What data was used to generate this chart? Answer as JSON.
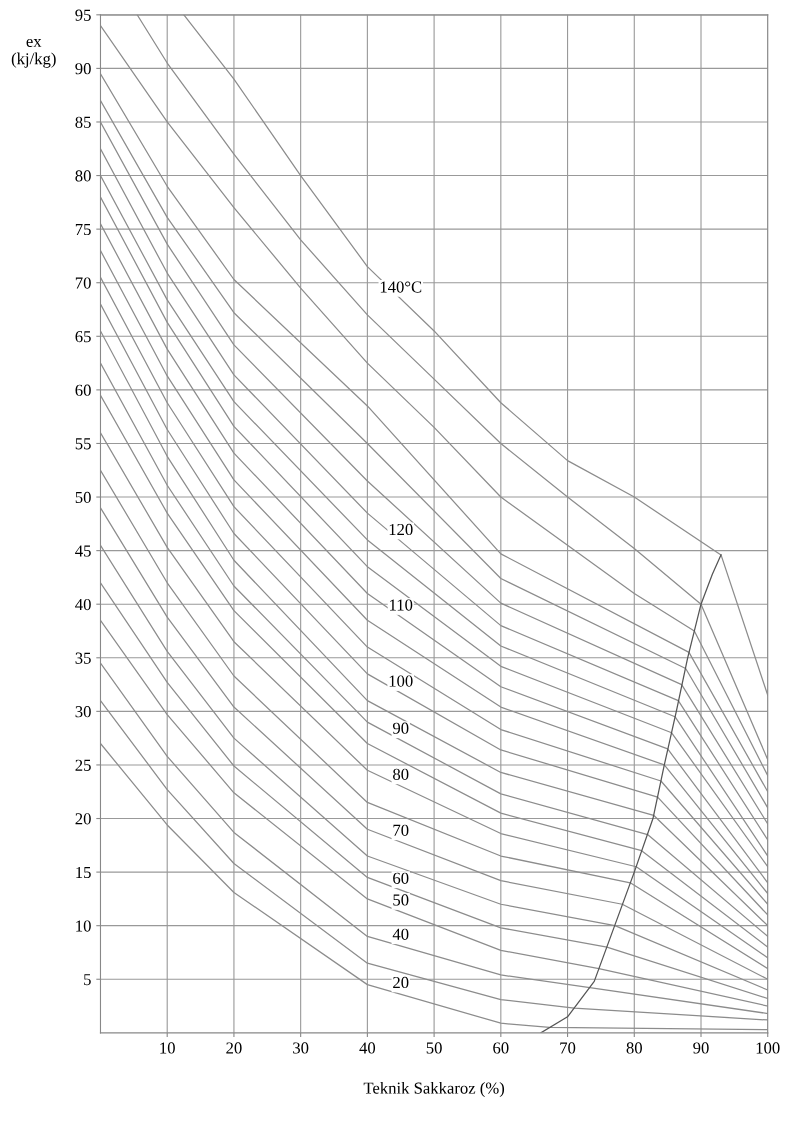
{
  "chart_data": {
    "type": "line",
    "xlabel": "Teknik Sakkaroz (%)",
    "ylabel": "ex\n(kj/kg)",
    "xlim": [
      0,
      100
    ],
    "xticks": [
      10,
      20,
      30,
      40,
      50,
      60,
      70,
      80,
      90,
      100
    ],
    "ylim": [
      0,
      95
    ],
    "yticks": [
      5,
      10,
      15,
      20,
      25,
      30,
      35,
      40,
      45,
      50,
      55,
      60,
      65,
      70,
      75,
      80,
      85,
      90,
      95
    ],
    "grid": true,
    "marker": "none",
    "line_style": "solid",
    "series": [
      {
        "name": "140°C",
        "color": "#8c8c8c",
        "x": [
          12.5,
          20,
          30,
          40,
          50,
          60,
          70,
          80,
          93,
          100
        ],
        "values": [
          95,
          89,
          80,
          71.5,
          65.5,
          58.8,
          53.4,
          50,
          44.6,
          31.5
        ]
      },
      {
        "color": "#8c8c8c",
        "x": [
          5.5,
          10,
          20,
          30,
          40,
          50,
          60,
          70,
          80,
          90,
          100
        ],
        "values": [
          95,
          90.5,
          82,
          74,
          67,
          61,
          55,
          50,
          45.2,
          40,
          25.5
        ]
      },
      {
        "color": "#8c8c8c",
        "x": [
          0,
          10,
          20,
          30,
          40,
          50,
          60,
          70,
          80,
          89,
          100
        ],
        "values": [
          94,
          85,
          77,
          69.5,
          62.5,
          56.5,
          50,
          45.5,
          41,
          37.5,
          24
        ]
      },
      {
        "color": "#8c8c8c",
        "x": [
          0,
          10,
          20,
          40,
          60,
          88.2,
          100
        ],
        "values": [
          89.5,
          79,
          70.3,
          58.5,
          44.7,
          35.5,
          22.5
        ]
      },
      {
        "color": "#8c8c8c",
        "x": [
          0,
          10,
          20,
          40,
          60,
          87.7,
          100
        ],
        "values": [
          87,
          76.1,
          67.2,
          55,
          42.4,
          34,
          21
        ]
      },
      {
        "color": "#8c8c8c",
        "x": [
          0,
          10,
          20,
          40,
          60,
          87.1,
          100
        ],
        "values": [
          85,
          73.6,
          64.2,
          51.5,
          40.1,
          32.5,
          19.5
        ]
      },
      {
        "name": "120",
        "color": "#8c8c8c",
        "x": [
          0,
          10,
          20,
          40,
          60,
          86.6,
          100
        ],
        "values": [
          82.5,
          70.9,
          61.4,
          48.5,
          38,
          31,
          18
        ]
      },
      {
        "color": "#8c8c8c",
        "x": [
          0,
          10,
          20,
          40,
          60,
          86.1,
          100
        ],
        "values": [
          80,
          68.4,
          58.9,
          46,
          36.1,
          29.5,
          16.5
        ]
      },
      {
        "color": "#8c8c8c",
        "x": [
          0,
          10,
          20,
          40,
          60,
          85.6,
          100
        ],
        "values": [
          78,
          66.3,
          56.6,
          43.5,
          34.2,
          28,
          15.5
        ]
      },
      {
        "name": "110",
        "color": "#8c8c8c",
        "x": [
          0,
          10,
          20,
          40,
          60,
          85,
          100
        ],
        "values": [
          75.5,
          63.8,
          54.1,
          41,
          32.3,
          26.5,
          14
        ]
      },
      {
        "color": "#8c8c8c",
        "x": [
          0,
          10,
          20,
          40,
          60,
          84.5,
          100
        ],
        "values": [
          73,
          61.3,
          51.6,
          38.5,
          30.4,
          25,
          13
        ]
      },
      {
        "color": "#8c8c8c",
        "x": [
          0,
          10,
          20,
          40,
          60,
          84,
          100
        ],
        "values": [
          70.5,
          58.8,
          49.1,
          36,
          28.3,
          23.5,
          12
        ]
      },
      {
        "name": "100",
        "color": "#8c8c8c",
        "x": [
          0,
          10,
          20,
          40,
          60,
          83.5,
          100
        ],
        "values": [
          68,
          56.3,
          46.6,
          33.5,
          26.4,
          22,
          11
        ]
      },
      {
        "color": "#8c8c8c",
        "x": [
          0,
          10,
          20,
          40,
          60,
          82.9,
          100
        ],
        "values": [
          65.5,
          53.8,
          44.1,
          31,
          24.3,
          20.3,
          10
        ]
      },
      {
        "name": "90",
        "color": "#8c8c8c",
        "x": [
          0,
          10,
          20,
          40,
          60,
          82,
          100
        ],
        "values": [
          62.5,
          51.1,
          41.7,
          29,
          22.3,
          18.5,
          9
        ]
      },
      {
        "color": "#8c8c8c",
        "x": [
          0,
          10,
          20,
          40,
          60,
          81.1,
          100
        ],
        "values": [
          59.5,
          48.5,
          39.4,
          27,
          20.5,
          17,
          8
        ]
      },
      {
        "name": "80",
        "color": "#8c8c8c",
        "x": [
          0,
          10,
          20,
          40,
          60,
          80.3,
          100
        ],
        "values": [
          56,
          45.3,
          36.5,
          24.5,
          18.6,
          15.5,
          7
        ]
      },
      {
        "color": "#8c8c8c",
        "x": [
          0,
          10,
          20,
          40,
          60,
          79.4,
          100
        ],
        "values": [
          52.5,
          42,
          33.3,
          21.5,
          16.5,
          14,
          6
        ]
      },
      {
        "name": "70",
        "color": "#8c8c8c",
        "x": [
          0,
          10,
          20,
          40,
          60,
          78.2,
          100
        ],
        "values": [
          49,
          38.8,
          30.4,
          19,
          14.2,
          12,
          5
        ]
      },
      {
        "color": "#8c8c8c",
        "x": [
          0,
          10,
          20,
          40,
          60,
          77.1,
          100
        ],
        "values": [
          45.5,
          35.6,
          27.5,
          16.5,
          12,
          10,
          4
        ]
      },
      {
        "name": "60",
        "color": "#8c8c8c",
        "x": [
          0,
          10,
          20,
          40,
          60,
          75.9,
          100
        ],
        "values": [
          42,
          32.7,
          24.9,
          14.5,
          9.8,
          8,
          3.2
        ]
      },
      {
        "name": "50",
        "color": "#8c8c8c",
        "x": [
          0,
          10,
          20,
          40,
          60,
          74.7,
          100
        ],
        "values": [
          38.5,
          29.7,
          22.4,
          12.5,
          7.7,
          6,
          2.5
        ]
      },
      {
        "name": "40",
        "color": "#8c8c8c",
        "x": [
          0,
          10,
          20,
          40,
          60,
          73.6,
          100
        ],
        "values": [
          34.5,
          25.8,
          18.7,
          9,
          5.4,
          4.2,
          1.8
        ]
      },
      {
        "color": "#8c8c8c",
        "x": [
          0,
          10,
          20,
          40,
          60,
          71,
          100
        ],
        "values": [
          31,
          22.7,
          15.8,
          6.5,
          3.1,
          2.3,
          1.2
        ]
      },
      {
        "name": "20",
        "color": "#8c8c8c",
        "x": [
          0,
          10,
          20,
          40,
          60,
          67.3,
          100
        ],
        "values": [
          27,
          19.4,
          13.1,
          4.5,
          0.9,
          0.5,
          0.3
        ]
      },
      {
        "color": "#555555",
        "x": [
          66,
          70,
          74,
          80,
          82.8,
          84.5,
          86.3,
          88,
          90,
          91.7,
          93
        ],
        "values": [
          0,
          1.5,
          4.8,
          15,
          20,
          25,
          30,
          35,
          40,
          42.8,
          44.6
        ]
      }
    ]
  }
}
